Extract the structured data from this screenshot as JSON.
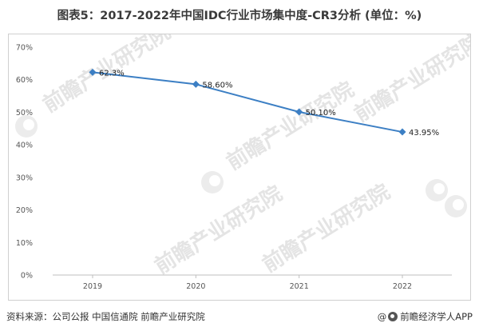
{
  "title": "图表5：2017-2022年中国IDC行业市场集中度-CR3分析 (单位：%)",
  "source": "资料来源：公司公报 中国信通院 前瞻产业研究院",
  "credit": {
    "at": "@",
    "brand": "前瞻经济学人APP",
    "icon": "qianzhan-logo-icon"
  },
  "watermark": {
    "text": "前瞻产业研究院"
  },
  "chart_data": {
    "type": "line",
    "categories": [
      "2019",
      "2020",
      "2021",
      "2022"
    ],
    "series": [
      {
        "values": [
          62.3,
          58.6,
          50.1,
          43.95
        ],
        "labels": [
          "62.3%",
          "58.60%",
          "50.10%",
          "43.95%"
        ],
        "color": "#3c7fc4",
        "marker": "diamond"
      }
    ],
    "ylim": [
      0,
      70
    ],
    "yticks": [
      "0%",
      "10%",
      "20%",
      "30%",
      "40%",
      "50%",
      "60%",
      "70%"
    ],
    "grid": false,
    "xlabel": "",
    "ylabel": ""
  }
}
